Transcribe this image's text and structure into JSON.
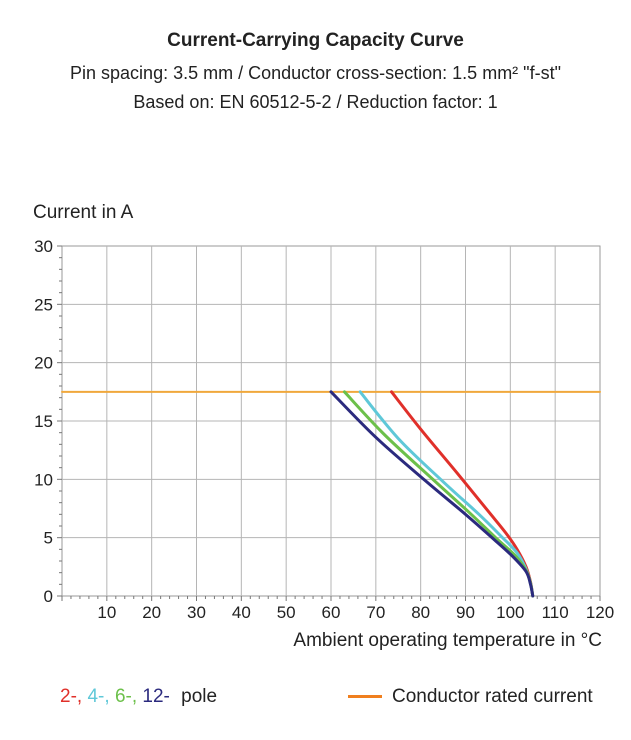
{
  "header": {
    "title": "Current-Carrying Capacity Curve",
    "subtitle1": "Pin spacing: 3.5 mm / Conductor cross-section: 1.5 mm² \"f-st\"",
    "subtitle2": "Based on: EN 60512-5-2 / Reduction factor: 1"
  },
  "legend": {
    "poles": [
      {
        "label": "2-",
        "color": "#e0302a"
      },
      {
        "label": "4-",
        "color": "#5fc8d8"
      },
      {
        "label": "6-",
        "color": "#6cc04a"
      },
      {
        "label": "12-",
        "color": "#2b2a7e"
      }
    ],
    "separator": ", ",
    "suffix": "pole",
    "rated_label": "Conductor rated current",
    "rated_color": "#f0a83c"
  },
  "chart_data": {
    "type": "line",
    "xlabel": "Ambient operating temperature in °C",
    "ylabel": "Current in A",
    "xlim": [
      0,
      120
    ],
    "ylim": [
      0,
      30
    ],
    "xticks": [
      10,
      20,
      30,
      40,
      50,
      60,
      70,
      80,
      90,
      100,
      110,
      120
    ],
    "yticks": [
      0,
      5,
      10,
      15,
      20,
      25,
      30
    ],
    "grid": true,
    "series": [
      {
        "name": "Conductor rated current",
        "color": "#f0a83c",
        "x": [
          0,
          120
        ],
        "y": [
          17.5,
          17.5
        ]
      },
      {
        "name": "2-",
        "color": "#e0302a",
        "x": [
          73.5,
          80,
          88,
          95,
          99,
          101.5,
          103.5,
          104.5,
          105
        ],
        "y": [
          17.5,
          14.3,
          10.6,
          7.3,
          5.4,
          4.0,
          2.5,
          1.2,
          0
        ]
      },
      {
        "name": "4-",
        "color": "#5fc8d8",
        "x": [
          66.5,
          75,
          85,
          93,
          98,
          101.5,
          103.5,
          104.5,
          105
        ],
        "y": [
          17.5,
          13.5,
          9.8,
          7.0,
          5.1,
          3.7,
          2.3,
          1.1,
          0
        ]
      },
      {
        "name": "6-",
        "color": "#6cc04a",
        "x": [
          63,
          72,
          83,
          91,
          97,
          101,
          103.5,
          104.5,
          105
        ],
        "y": [
          17.5,
          13.8,
          9.9,
          7.1,
          4.9,
          3.5,
          2.2,
          1.1,
          0
        ]
      },
      {
        "name": "12-",
        "color": "#2b2a7e",
        "x": [
          60,
          70,
          81,
          90,
          96.5,
          100.5,
          103.5,
          104.5,
          105
        ],
        "y": [
          17.5,
          13.6,
          9.9,
          7.0,
          4.8,
          3.4,
          2.1,
          1.0,
          0
        ]
      }
    ]
  }
}
